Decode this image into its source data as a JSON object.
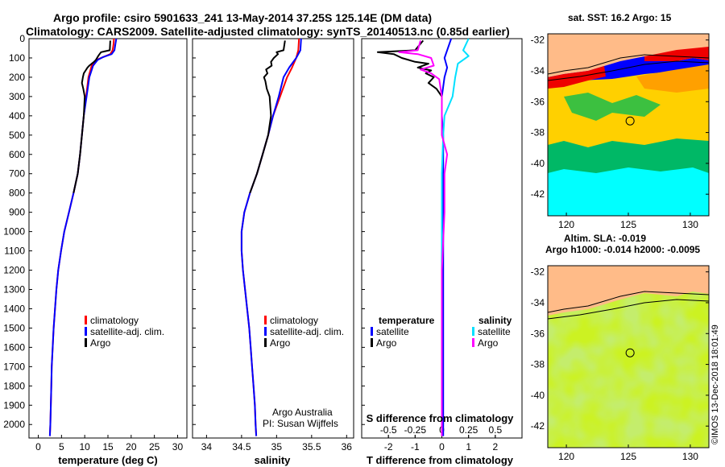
{
  "title_line1": "Argo profile: csiro 5901633_241 13-May-2014 37.25S 125.14E (DM data)",
  "title_line2": "Climatology: CARS2009. Satellite-adjusted climatology: synTS_20140513.nc (0.85d earlier)",
  "credit": "©IMOS 13-Dec-2018 18:01:49",
  "colors": {
    "climatology": "#ff0000",
    "satellite": "#0000ff",
    "argo": "#000000",
    "sal_satellite": "#00e0ff",
    "sal_argo": "#ff00ff"
  },
  "chart_data": [
    {
      "id": "temperature",
      "type": "line",
      "xlabel": "temperature (deg C)",
      "xlim": [
        -2,
        32
      ],
      "xticks": [
        "0",
        "5",
        "10",
        "15",
        "20",
        "25",
        "30"
      ],
      "ylim": [
        2070,
        0
      ],
      "yticks": [
        "0",
        "100",
        "200",
        "300",
        "400",
        "500",
        "600",
        "700",
        "800",
        "900",
        "1000",
        "1100",
        "1200",
        "1300",
        "1400",
        "1500",
        "1600",
        "1700",
        "1800",
        "1900",
        "2000"
      ],
      "legend": [
        "climatology",
        "satellite-adj. clim.",
        "Argo"
      ],
      "series": [
        {
          "name": "climatology",
          "color": "#ff0000",
          "points": [
            [
              16.3,
              0
            ],
            [
              16.2,
              30
            ],
            [
              16.0,
              60
            ],
            [
              15.5,
              80
            ],
            [
              14.0,
              95
            ],
            [
              12.5,
              110
            ],
            [
              11.5,
              140
            ],
            [
              10.8,
              200
            ],
            [
              10.3,
              300
            ],
            [
              9.8,
              400
            ],
            [
              9.4,
              500
            ],
            [
              9.0,
              600
            ],
            [
              8.5,
              700
            ],
            [
              7.6,
              800
            ],
            [
              6.6,
              900
            ],
            [
              5.6,
              1000
            ],
            [
              4.9,
              1100
            ],
            [
              4.3,
              1200
            ],
            [
              3.9,
              1300
            ],
            [
              3.6,
              1400
            ],
            [
              3.3,
              1500
            ],
            [
              3.1,
              1600
            ],
            [
              2.9,
              1700
            ],
            [
              2.8,
              1800
            ],
            [
              2.7,
              1900
            ],
            [
              2.6,
              2000
            ],
            [
              2.5,
              2060
            ]
          ]
        },
        {
          "name": "satellite-adj. clim.",
          "color": "#0000ff",
          "points": [
            [
              16.8,
              0
            ],
            [
              16.6,
              30
            ],
            [
              16.4,
              60
            ],
            [
              15.8,
              80
            ],
            [
              14.0,
              95
            ],
            [
              12.8,
              110
            ],
            [
              11.8,
              140
            ],
            [
              11.0,
              200
            ],
            [
              10.4,
              300
            ],
            [
              9.8,
              400
            ],
            [
              9.4,
              500
            ],
            [
              9.0,
              600
            ],
            [
              8.5,
              700
            ],
            [
              7.6,
              800
            ],
            [
              6.6,
              900
            ],
            [
              5.6,
              1000
            ],
            [
              4.9,
              1100
            ],
            [
              4.3,
              1200
            ],
            [
              3.9,
              1300
            ],
            [
              3.6,
              1400
            ],
            [
              3.3,
              1500
            ],
            [
              3.1,
              1600
            ],
            [
              2.9,
              1700
            ],
            [
              2.8,
              1800
            ],
            [
              2.7,
              1900
            ],
            [
              2.6,
              2000
            ],
            [
              2.5,
              2060
            ]
          ]
        },
        {
          "name": "Argo",
          "color": "#000000",
          "points": [
            [
              15.5,
              10
            ],
            [
              15.4,
              60
            ],
            [
              13.5,
              70
            ],
            [
              13.2,
              80
            ],
            [
              12.9,
              90
            ],
            [
              12.4,
              110
            ],
            [
              12.0,
              120
            ],
            [
              11.5,
              130
            ],
            [
              11.0,
              140
            ],
            [
              10.6,
              150
            ],
            [
              10.2,
              165
            ],
            [
              9.8,
              180
            ],
            [
              9.6,
              200
            ],
            [
              9.4,
              230
            ],
            [
              9.7,
              260
            ],
            [
              10.0,
              300
            ],
            [
              9.8,
              400
            ],
            [
              9.4,
              500
            ],
            [
              9.0,
              600
            ],
            [
              8.5,
              700
            ],
            [
              7.6,
              800
            ]
          ]
        }
      ]
    },
    {
      "id": "salinity",
      "type": "line",
      "xlabel": "salinity",
      "xlim": [
        33.8,
        36.1
      ],
      "xticks": [
        "34",
        "34.5",
        "35",
        "35.5",
        "36"
      ],
      "ylim": [
        2070,
        0
      ],
      "legend": [
        "climatology",
        "satellite-adj. clim.",
        "Argo"
      ],
      "annotation": [
        "Argo Australia",
        "PI: Susan Wijffels"
      ],
      "series": [
        {
          "name": "climatology",
          "color": "#ff0000",
          "points": [
            [
              35.32,
              0
            ],
            [
              35.31,
              60
            ],
            [
              35.28,
              100
            ],
            [
              35.22,
              150
            ],
            [
              35.15,
              200
            ],
            [
              35.05,
              300
            ],
            [
              34.95,
              400
            ],
            [
              34.88,
              500
            ],
            [
              34.8,
              600
            ],
            [
              34.72,
              700
            ],
            [
              34.62,
              800
            ],
            [
              34.54,
              900
            ],
            [
              34.5,
              1000
            ],
            [
              34.5,
              1100
            ],
            [
              34.52,
              1200
            ],
            [
              34.55,
              1300
            ],
            [
              34.58,
              1400
            ],
            [
              34.61,
              1500
            ],
            [
              34.63,
              1600
            ],
            [
              34.65,
              1700
            ],
            [
              34.67,
              1800
            ],
            [
              34.69,
              1900
            ],
            [
              34.7,
              2000
            ],
            [
              34.71,
              2060
            ]
          ]
        },
        {
          "name": "satellite-adj. clim.",
          "color": "#0000ff",
          "points": [
            [
              35.35,
              0
            ],
            [
              35.34,
              60
            ],
            [
              35.28,
              100
            ],
            [
              35.18,
              150
            ],
            [
              35.1,
              200
            ],
            [
              35.03,
              300
            ],
            [
              34.95,
              400
            ],
            [
              34.88,
              500
            ],
            [
              34.8,
              600
            ],
            [
              34.72,
              700
            ],
            [
              34.62,
              800
            ],
            [
              34.54,
              900
            ],
            [
              34.5,
              1000
            ],
            [
              34.5,
              1100
            ],
            [
              34.52,
              1200
            ],
            [
              34.55,
              1300
            ],
            [
              34.58,
              1400
            ],
            [
              34.61,
              1500
            ],
            [
              34.63,
              1600
            ],
            [
              34.65,
              1700
            ],
            [
              34.67,
              1800
            ],
            [
              34.69,
              1900
            ],
            [
              34.7,
              2000
            ],
            [
              34.71,
              2060
            ]
          ]
        },
        {
          "name": "Argo",
          "color": "#000000",
          "points": [
            [
              35.12,
              10
            ],
            [
              35.1,
              60
            ],
            [
              35.0,
              70
            ],
            [
              35.02,
              80
            ],
            [
              34.96,
              100
            ],
            [
              34.92,
              120
            ],
            [
              34.93,
              140
            ],
            [
              34.85,
              160
            ],
            [
              34.87,
              180
            ],
            [
              34.82,
              200
            ],
            [
              34.84,
              220
            ],
            [
              34.86,
              260
            ],
            [
              34.9,
              300
            ],
            [
              34.92,
              400
            ],
            [
              34.88,
              500
            ],
            [
              34.8,
              600
            ],
            [
              34.72,
              700
            ],
            [
              34.62,
              800
            ]
          ]
        }
      ]
    },
    {
      "id": "difference",
      "type": "line",
      "xlabel": "T difference from climatology",
      "xlabel_top": "S difference from climatology",
      "xlim": [
        -3,
        3
      ],
      "xticks": [
        "-2",
        "-1",
        "0",
        "1",
        "2"
      ],
      "xticks_top": [
        "-0.5",
        "-0.25",
        "0",
        "0.25",
        "0.5"
      ],
      "ylim": [
        2070,
        0
      ],
      "legend_left": {
        "header": "temperature",
        "items": [
          "satellite",
          "Argo"
        ]
      },
      "legend_right": {
        "header": "salinity",
        "items": [
          "satellite",
          "Argo"
        ]
      },
      "series": [
        {
          "name": "temperature satellite",
          "color": "#0000ff",
          "points": [
            [
              0.35,
              0
            ],
            [
              0.2,
              60
            ],
            [
              0.1,
              100
            ],
            [
              0.2,
              150
            ],
            [
              0.1,
              200
            ],
            [
              0.0,
              300
            ],
            [
              0.0,
              400
            ],
            [
              0.05,
              500
            ],
            [
              0.05,
              700
            ],
            [
              0.05,
              900
            ],
            [
              0.05,
              1200
            ],
            [
              0.05,
              1500
            ],
            [
              0.05,
              1800
            ],
            [
              0.05,
              2060
            ]
          ]
        },
        {
          "name": "temperature Argo",
          "color": "#000000",
          "points": [
            [
              -0.7,
              10
            ],
            [
              -1.0,
              60
            ],
            [
              -2.4,
              70
            ],
            [
              -1.8,
              80
            ],
            [
              -1.5,
              100
            ],
            [
              -1.0,
              120
            ],
            [
              -0.5,
              130
            ],
            [
              -0.9,
              150
            ],
            [
              -0.4,
              165
            ],
            [
              -0.6,
              180
            ],
            [
              -0.3,
              200
            ],
            [
              -0.5,
              230
            ],
            [
              -0.2,
              260
            ],
            [
              0.0,
              300
            ],
            [
              0.0,
              400
            ]
          ]
        },
        {
          "name": "salinity satellite",
          "color": "#00e0ff",
          "points": [
            [
              1.0,
              0
            ],
            [
              0.8,
              60
            ],
            [
              1.0,
              90
            ],
            [
              0.6,
              130
            ],
            [
              0.5,
              200
            ],
            [
              0.4,
              300
            ],
            [
              0.1,
              400
            ],
            [
              0.05,
              500
            ],
            [
              0.0,
              700
            ],
            [
              0.0,
              1000
            ],
            [
              0.0,
              1300
            ],
            [
              0.0,
              1600
            ],
            [
              0.0,
              1900
            ],
            [
              0.0,
              2060
            ]
          ]
        },
        {
          "name": "salinity Argo",
          "color": "#ff00ff",
          "points": [
            [
              -0.8,
              10
            ],
            [
              -0.9,
              60
            ],
            [
              -1.6,
              70
            ],
            [
              -0.9,
              80
            ],
            [
              -0.4,
              100
            ],
            [
              -0.3,
              140
            ],
            [
              -0.8,
              160
            ],
            [
              -0.4,
              180
            ],
            [
              -0.1,
              210
            ],
            [
              0.0,
              300
            ],
            [
              0.0,
              500
            ],
            [
              0.2,
              600
            ],
            [
              0.1,
              700
            ],
            [
              0.1,
              900
            ],
            [
              0.0,
              1200
            ],
            [
              0.0,
              1500
            ],
            [
              0.0,
              1800
            ],
            [
              0.0,
              2060
            ]
          ]
        }
      ]
    },
    {
      "id": "sst_map",
      "type": "heatmap",
      "title": "sat. SST: 16.2 Argo: 15",
      "xticks": [
        "120",
        "125",
        "130"
      ],
      "yticks": [
        "-32",
        "-34",
        "-36",
        "-38",
        "-40",
        "-42"
      ],
      "xlim": [
        118.5,
        131.5
      ],
      "ylim": [
        -43.4,
        -31.6
      ],
      "marker": [
        125.14,
        -37.25
      ]
    },
    {
      "id": "sla_map",
      "type": "heatmap",
      "title_line1": "Altim. SLA: -0.019",
      "title_line2": "Argo h1000: -0.014 h2000: -0.0095",
      "xticks": [
        "120",
        "125",
        "130"
      ],
      "yticks": [
        "-32",
        "-34",
        "-36",
        "-38",
        "-40",
        "-42"
      ],
      "xlim": [
        118.5,
        131.5
      ],
      "ylim": [
        -43.4,
        -31.6
      ],
      "marker": [
        125.14,
        -37.25
      ]
    }
  ]
}
